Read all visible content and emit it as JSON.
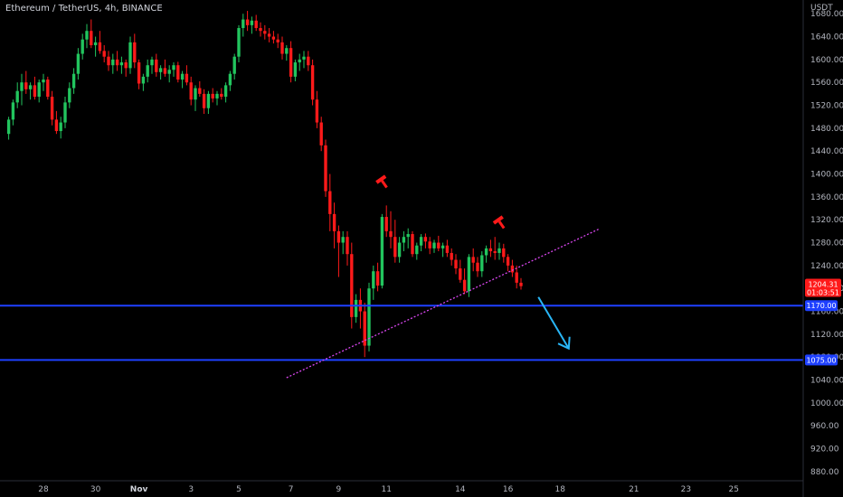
{
  "header": {
    "title": "Ethereum / TetherUS, 4h, BINANCE"
  },
  "colors": {
    "background": "#000000",
    "up": "#22c55e",
    "down": "#ff1a1a",
    "level_line": "#1e40ff",
    "trend_line": "#d946ef",
    "arrow": "#29b6f6",
    "price_tag": "#ff1a1a",
    "level_tag": "#1e40ff"
  },
  "chart_data": {
    "type": "candlestick",
    "title": "Ethereum / TetherUS, 4h, BINANCE",
    "y_unit": "USDT",
    "ylim": [
      864,
      1704
    ],
    "y_ticks": [
      880,
      920,
      960,
      1000,
      1040,
      1080,
      1120,
      1160,
      1200,
      1240,
      1280,
      1320,
      1360,
      1400,
      1440,
      1480,
      1520,
      1560,
      1600,
      1640,
      1680
    ],
    "x_tick_labels": [
      "28",
      "30",
      "Nov",
      "3",
      "5",
      "7",
      "9",
      "11",
      "14",
      "16",
      "18",
      "21",
      "23",
      "25"
    ],
    "x_tick_label_index": [
      8,
      20,
      30,
      42,
      53,
      65,
      76,
      87,
      104,
      115,
      127,
      144,
      156,
      167
    ],
    "x_range_bars": [
      -2,
      183
    ],
    "current_price": "1204.31",
    "countdown": "01:03:51",
    "horizontal_levels": [
      {
        "label": "1170.00",
        "value": 1170
      },
      {
        "label": "1075.00",
        "value": 1075
      }
    ],
    "trend_line": {
      "from": {
        "bar": 64,
        "price": 1044
      },
      "to": {
        "bar": 136,
        "price": 1304
      }
    },
    "arrow": {
      "from": {
        "bar": 122,
        "price": 1185
      },
      "to": {
        "bar": 129,
        "price": 1095
      }
    },
    "markers": [
      {
        "bar": 86,
        "price": 1388,
        "type": "top"
      },
      {
        "bar": 113,
        "price": 1317,
        "type": "top"
      }
    ],
    "candles": [
      [
        1470,
        1500,
        1460,
        1495
      ],
      [
        1495,
        1530,
        1485,
        1525
      ],
      [
        1525,
        1560,
        1515,
        1545
      ],
      [
        1545,
        1575,
        1520,
        1560
      ],
      [
        1560,
        1580,
        1540,
        1548
      ],
      [
        1548,
        1560,
        1530,
        1555
      ],
      [
        1555,
        1570,
        1530,
        1535
      ],
      [
        1535,
        1565,
        1525,
        1560
      ],
      [
        1560,
        1575,
        1545,
        1565
      ],
      [
        1565,
        1570,
        1530,
        1535
      ],
      [
        1535,
        1545,
        1485,
        1495
      ],
      [
        1495,
        1510,
        1470,
        1475
      ],
      [
        1475,
        1500,
        1462,
        1490
      ],
      [
        1490,
        1535,
        1480,
        1525
      ],
      [
        1525,
        1560,
        1515,
        1550
      ],
      [
        1550,
        1585,
        1540,
        1575
      ],
      [
        1575,
        1620,
        1565,
        1610
      ],
      [
        1610,
        1645,
        1600,
        1635
      ],
      [
        1635,
        1662,
        1620,
        1650
      ],
      [
        1650,
        1670,
        1620,
        1625
      ],
      [
        1625,
        1640,
        1605,
        1630
      ],
      [
        1630,
        1650,
        1610,
        1615
      ],
      [
        1615,
        1625,
        1595,
        1605
      ],
      [
        1605,
        1615,
        1580,
        1590
      ],
      [
        1590,
        1610,
        1575,
        1600
      ],
      [
        1600,
        1615,
        1580,
        1590
      ],
      [
        1590,
        1605,
        1575,
        1595
      ],
      [
        1595,
        1600,
        1570,
        1585
      ],
      [
        1585,
        1640,
        1575,
        1630
      ],
      [
        1630,
        1645,
        1585,
        1595
      ],
      [
        1595,
        1600,
        1548,
        1558
      ],
      [
        1558,
        1575,
        1545,
        1570
      ],
      [
        1570,
        1600,
        1560,
        1590
      ],
      [
        1590,
        1605,
        1575,
        1600
      ],
      [
        1600,
        1610,
        1570,
        1578
      ],
      [
        1578,
        1590,
        1565,
        1585
      ],
      [
        1585,
        1600,
        1570,
        1575
      ],
      [
        1575,
        1590,
        1560,
        1582
      ],
      [
        1582,
        1595,
        1570,
        1590
      ],
      [
        1590,
        1596,
        1560,
        1565
      ],
      [
        1565,
        1580,
        1550,
        1575
      ],
      [
        1575,
        1590,
        1555,
        1560
      ],
      [
        1560,
        1570,
        1520,
        1530
      ],
      [
        1530,
        1555,
        1510,
        1550
      ],
      [
        1550,
        1562,
        1535,
        1540
      ],
      [
        1540,
        1548,
        1505,
        1515
      ],
      [
        1515,
        1545,
        1505,
        1540
      ],
      [
        1540,
        1550,
        1525,
        1532
      ],
      [
        1532,
        1545,
        1520,
        1540
      ],
      [
        1540,
        1550,
        1530,
        1535
      ],
      [
        1535,
        1560,
        1525,
        1555
      ],
      [
        1555,
        1580,
        1545,
        1575
      ],
      [
        1575,
        1610,
        1565,
        1605
      ],
      [
        1605,
        1660,
        1595,
        1655
      ],
      [
        1655,
        1680,
        1640,
        1670
      ],
      [
        1670,
        1685,
        1650,
        1660
      ],
      [
        1660,
        1675,
        1645,
        1668
      ],
      [
        1668,
        1678,
        1650,
        1655
      ],
      [
        1655,
        1665,
        1640,
        1650
      ],
      [
        1650,
        1660,
        1635,
        1645
      ],
      [
        1645,
        1655,
        1630,
        1640
      ],
      [
        1640,
        1650,
        1628,
        1635
      ],
      [
        1635,
        1645,
        1620,
        1630
      ],
      [
        1630,
        1640,
        1600,
        1610
      ],
      [
        1610,
        1625,
        1598,
        1620
      ],
      [
        1620,
        1632,
        1560,
        1570
      ],
      [
        1570,
        1600,
        1562,
        1595
      ],
      [
        1595,
        1610,
        1580,
        1600
      ],
      [
        1600,
        1615,
        1585,
        1605
      ],
      [
        1605,
        1615,
        1580,
        1590
      ],
      [
        1590,
        1600,
        1520,
        1530
      ],
      [
        1530,
        1545,
        1480,
        1490
      ],
      [
        1490,
        1500,
        1440,
        1450
      ],
      [
        1450,
        1460,
        1360,
        1370
      ],
      [
        1370,
        1400,
        1300,
        1330
      ],
      [
        1330,
        1350,
        1270,
        1300
      ],
      [
        1300,
        1310,
        1220,
        1280
      ],
      [
        1280,
        1300,
        1260,
        1290
      ],
      [
        1290,
        1300,
        1240,
        1260
      ],
      [
        1260,
        1280,
        1130,
        1150
      ],
      [
        1150,
        1190,
        1140,
        1180
      ],
      [
        1180,
        1200,
        1130,
        1160
      ],
      [
        1160,
        1175,
        1080,
        1100
      ],
      [
        1100,
        1210,
        1090,
        1200
      ],
      [
        1200,
        1240,
        1180,
        1230
      ],
      [
        1230,
        1245,
        1195,
        1205
      ],
      [
        1205,
        1330,
        1200,
        1325
      ],
      [
        1325,
        1345,
        1290,
        1300
      ],
      [
        1300,
        1335,
        1270,
        1290
      ],
      [
        1290,
        1320,
        1245,
        1255
      ],
      [
        1255,
        1290,
        1245,
        1280
      ],
      [
        1280,
        1300,
        1265,
        1290
      ],
      [
        1290,
        1305,
        1270,
        1295
      ],
      [
        1295,
        1300,
        1255,
        1260
      ],
      [
        1260,
        1280,
        1250,
        1275
      ],
      [
        1275,
        1295,
        1265,
        1290
      ],
      [
        1290,
        1296,
        1270,
        1282
      ],
      [
        1282,
        1290,
        1260,
        1270
      ],
      [
        1270,
        1285,
        1262,
        1280
      ],
      [
        1280,
        1292,
        1265,
        1270
      ],
      [
        1270,
        1280,
        1255,
        1275
      ],
      [
        1275,
        1285,
        1255,
        1262
      ],
      [
        1262,
        1270,
        1240,
        1250
      ],
      [
        1250,
        1260,
        1225,
        1235
      ],
      [
        1235,
        1250,
        1210,
        1215
      ],
      [
        1215,
        1235,
        1190,
        1195
      ],
      [
        1195,
        1260,
        1185,
        1255
      ],
      [
        1255,
        1270,
        1230,
        1245
      ],
      [
        1245,
        1255,
        1220,
        1230
      ],
      [
        1230,
        1265,
        1220,
        1258
      ],
      [
        1258,
        1275,
        1245,
        1270
      ],
      [
        1270,
        1285,
        1255,
        1265
      ],
      [
        1265,
        1290,
        1250,
        1262
      ],
      [
        1262,
        1280,
        1250,
        1270
      ],
      [
        1270,
        1278,
        1245,
        1255
      ],
      [
        1255,
        1260,
        1230,
        1240
      ],
      [
        1240,
        1250,
        1220,
        1228
      ],
      [
        1228,
        1240,
        1200,
        1210
      ],
      [
        1210,
        1218,
        1198,
        1204
      ]
    ]
  }
}
